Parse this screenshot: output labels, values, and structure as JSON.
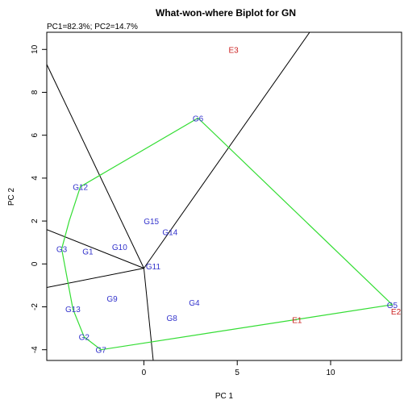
{
  "chart_data": {
    "type": "scatter",
    "title": "What-won-where Biplot for GN",
    "subtitle": "PC1=82.3%; PC2=14.7%",
    "xlabel": "PC 1",
    "ylabel": "PC 2",
    "xlim": [
      -5.2,
      13.8
    ],
    "ylim": [
      -4.5,
      10.8
    ],
    "xticks": [
      0,
      5,
      10
    ],
    "yticks": [
      -4,
      -2,
      0,
      2,
      4,
      6,
      8,
      10
    ],
    "grid": false,
    "genotype_color": "#3333cc",
    "environment_color": "#cc2222",
    "hull_color": "#33dd33",
    "sector_line_color": "#000000",
    "genotypes": [
      {
        "label": "G1",
        "x": -3.0,
        "y": 0.6
      },
      {
        "label": "G2",
        "x": -3.2,
        "y": -3.4
      },
      {
        "label": "G3",
        "x": -4.4,
        "y": 0.7
      },
      {
        "label": "G4",
        "x": 2.7,
        "y": -1.8
      },
      {
        "label": "G5",
        "x": 13.3,
        "y": -1.9
      },
      {
        "label": "G6",
        "x": 2.9,
        "y": 6.8
      },
      {
        "label": "G7",
        "x": -2.3,
        "y": -4.0
      },
      {
        "label": "G8",
        "x": 1.5,
        "y": -2.5
      },
      {
        "label": "G9",
        "x": -1.7,
        "y": -1.6
      },
      {
        "label": "G10",
        "x": -1.3,
        "y": 0.8
      },
      {
        "label": "G11",
        "x": 0.5,
        "y": -0.1
      },
      {
        "label": "G12",
        "x": -3.4,
        "y": 3.6
      },
      {
        "label": "G13",
        "x": -3.8,
        "y": -2.1
      },
      {
        "label": "G14",
        "x": 1.4,
        "y": 1.5
      },
      {
        "label": "G15",
        "x": 0.4,
        "y": 2.0
      }
    ],
    "environments": [
      {
        "label": "E1",
        "x": 8.2,
        "y": -2.6
      },
      {
        "label": "E2",
        "x": 13.5,
        "y": -2.2
      },
      {
        "label": "E3",
        "x": 4.8,
        "y": 10.0
      }
    ],
    "hull": [
      {
        "x": 2.9,
        "y": 6.8
      },
      {
        "x": 13.3,
        "y": -1.9
      },
      {
        "x": -2.3,
        "y": -4.0
      },
      {
        "x": -3.2,
        "y": -3.4
      },
      {
        "x": -3.8,
        "y": -2.1
      },
      {
        "x": -4.4,
        "y": 0.7
      },
      {
        "x": -4.0,
        "y": 2.0
      },
      {
        "x": -3.4,
        "y": 3.6
      }
    ],
    "sector_origin": {
      "x": 0.0,
      "y": -0.2
    },
    "sector_lines": [
      {
        "x": 9.2,
        "y": 11.2
      },
      {
        "x": -5.2,
        "y": 9.3
      },
      {
        "x": -5.2,
        "y": 1.6
      },
      {
        "x": -5.2,
        "y": -1.1
      },
      {
        "x": 0.5,
        "y": -4.5
      }
    ]
  }
}
